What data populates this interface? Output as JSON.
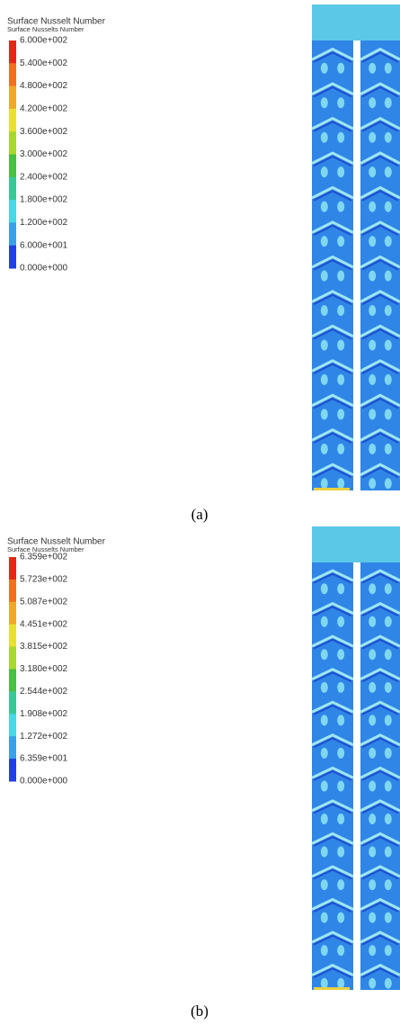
{
  "panels": [
    {
      "legend": {
        "title": "Surface Nusselt Number",
        "subtitle": "Surface Nusselts Number",
        "labels": [
          "6.000e+002",
          "5.400e+002",
          "4.800e+002",
          "4.200e+002",
          "3.600e+002",
          "3.000e+002",
          "2.400e+002",
          "1.800e+002",
          "1.200e+002",
          "6.000e+001",
          "0.000e+000"
        ]
      },
      "caption": "(a)"
    },
    {
      "legend": {
        "title": "Surface Nusselt Number",
        "subtitle": "Surface Nusselts Number",
        "labels": [
          "6.359e+002",
          "5.723e+002",
          "5.087e+002",
          "4.451e+002",
          "3.815e+002",
          "3.180e+002",
          "2.544e+002",
          "1.908e+002",
          "1.272e+002",
          "6.359e+001",
          "0.000e+000"
        ]
      },
      "caption": "(b)"
    }
  ]
}
